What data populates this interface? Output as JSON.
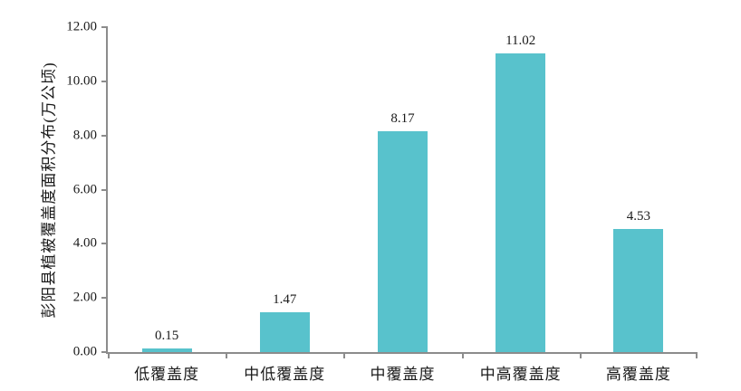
{
  "chart_data": {
    "type": "bar",
    "title": "",
    "xlabel": "",
    "ylabel": "彭阳县植被覆盖度面积分布(万公顷)",
    "categories": [
      "低覆盖度",
      "中低覆盖度",
      "中覆盖度",
      "中高覆盖度",
      "高覆盖度"
    ],
    "values": [
      0.15,
      1.47,
      8.17,
      11.02,
      4.53
    ],
    "value_labels": [
      "0.15",
      "1.47",
      "8.17",
      "11.02",
      "4.53"
    ],
    "ylim": [
      0,
      12
    ],
    "ytick_labels": [
      "0.00",
      "2.00",
      "4.00",
      "6.00",
      "8.00",
      "10.00",
      "12.00"
    ],
    "grid": false,
    "legend": false,
    "bar_color": "#58C2CC",
    "axis_color": "#8c8c8c",
    "text_color": "#1a1a1a"
  }
}
